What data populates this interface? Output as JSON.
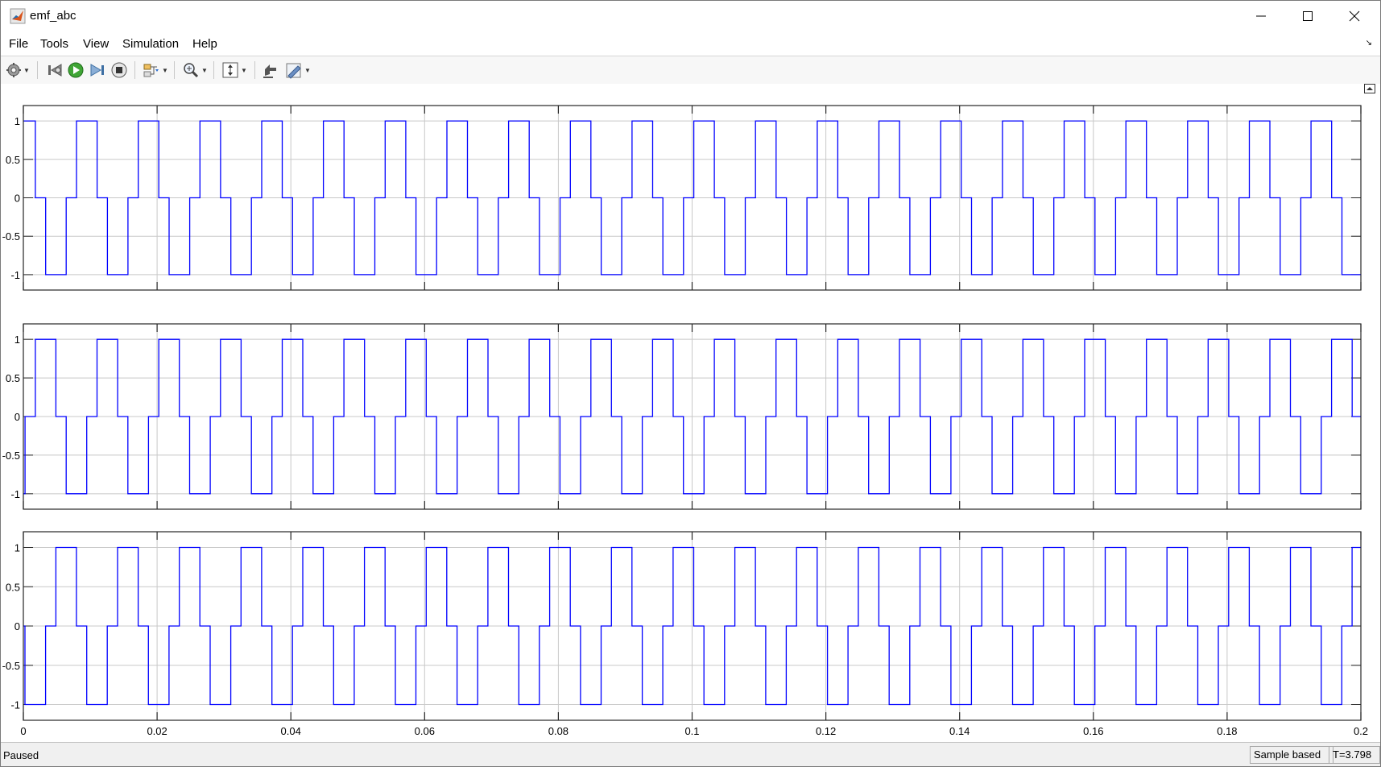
{
  "window": {
    "title": "emf_abc"
  },
  "window_buttons": {
    "minimize": "minimize-icon",
    "maximize": "maximize-icon",
    "close": "close-icon"
  },
  "menu": {
    "items": [
      "File",
      "Tools",
      "View",
      "Simulation",
      "Help"
    ]
  },
  "toolbar": {
    "buttons": [
      "settings-icon",
      "step-back-icon",
      "run-icon",
      "step-forward-icon",
      "stop-icon",
      "signal-selector-icon",
      "zoom-icon",
      "autoscale-icon",
      "highlight-icon",
      "edit-style-icon"
    ]
  },
  "status": {
    "left": "Paused",
    "mode": "Sample based",
    "time": "T=3.798"
  },
  "chart_data": [
    {
      "type": "line",
      "title": "",
      "xlim": [
        0,
        0.2
      ],
      "ylim": [
        -1.2,
        1.2
      ],
      "yticks": [
        "1",
        "0.5",
        "0",
        "-0.5",
        "-1"
      ],
      "grid": true,
      "series": [
        {
          "color": "#0000ff",
          "waveform": "six-step square wave (+1 / 0 / -1)",
          "period": 0.00923,
          "phase_offset": -0.00128
        }
      ]
    },
    {
      "type": "line",
      "title": "",
      "xlim": [
        0,
        0.2
      ],
      "ylim": [
        -1.2,
        1.2
      ],
      "yticks": [
        "1",
        "0.5",
        "0",
        "-0.5",
        "-1"
      ],
      "grid": true,
      "series": [
        {
          "color": "#0000ff",
          "waveform": "six-step square wave (+1 / 0 / -1)",
          "period": 0.00923,
          "phase_offset": 0.00179
        }
      ]
    },
    {
      "type": "line",
      "title": "",
      "xlim": [
        0,
        0.2
      ],
      "ylim": [
        -1.2,
        1.2
      ],
      "yticks": [
        "1",
        "0.5",
        "0",
        "-0.5",
        "-1"
      ],
      "xticks": [
        "0",
        "0.02",
        "0.04",
        "0.06",
        "0.08",
        "0.1",
        "0.12",
        "0.14",
        "0.16",
        "0.18",
        "0.2"
      ],
      "grid": true,
      "series": [
        {
          "color": "#0000ff",
          "waveform": "six-step square wave (+1 / 0 / -1)",
          "period": 0.00923,
          "phase_offset": 0.00486
        }
      ]
    }
  ]
}
